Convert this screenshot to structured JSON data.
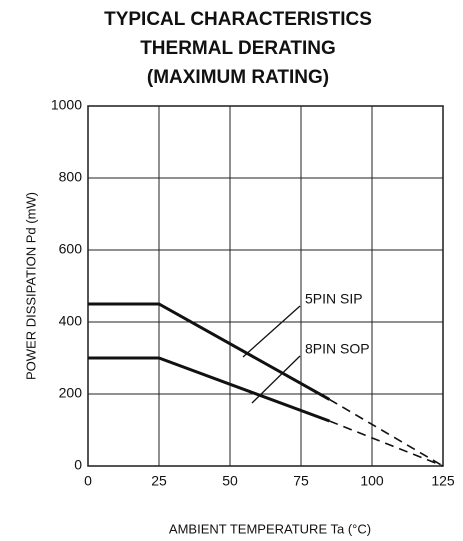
{
  "chart_data": {
    "type": "line",
    "title": [
      "TYPICAL CHARACTERISTICS",
      "THERMAL DERATING",
      "(MAXIMUM RATING)"
    ],
    "xlabel": "AMBIENT TEMPERATURE Ta (°C)",
    "ylabel": "POWER DISSIPATION Pd (mW)",
    "x": [
      0,
      25,
      85,
      125
    ],
    "segment_styles": [
      "solid",
      "solid",
      "dashed"
    ],
    "series": [
      {
        "name": "5PIN SIP",
        "color": "#111111",
        "values": [
          450,
          450,
          185,
          0
        ]
      },
      {
        "name": "8PIN SOP",
        "color": "#111111",
        "values": [
          300,
          300,
          125,
          0
        ]
      }
    ],
    "xlim": [
      0,
      125
    ],
    "xticks": [
      0,
      25,
      50,
      75,
      100,
      125
    ],
    "ylim": [
      0,
      1000
    ],
    "yticks": [
      0,
      200,
      400,
      600,
      800,
      1000
    ],
    "grid": true
  }
}
